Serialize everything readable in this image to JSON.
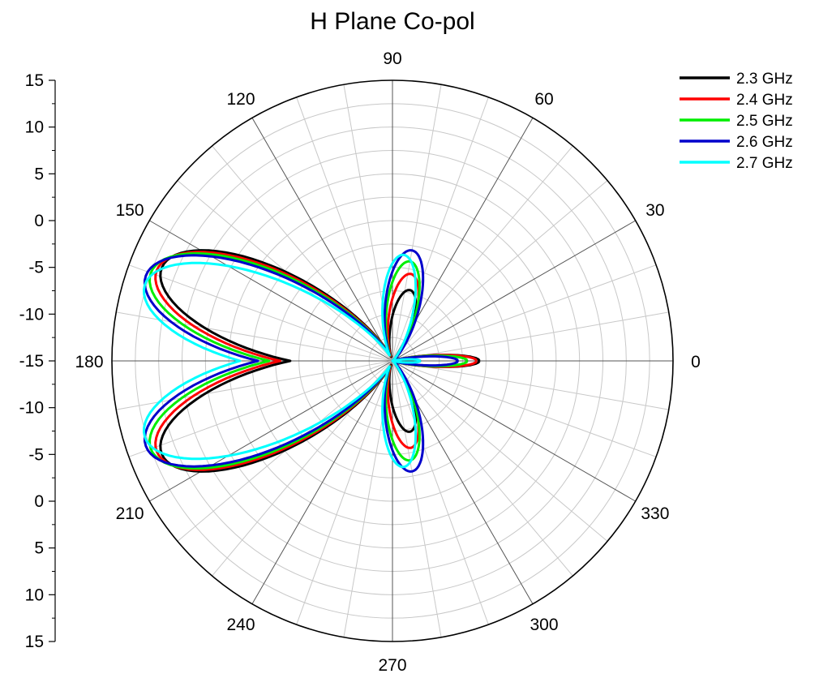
{
  "chart_data": {
    "type": "polar",
    "title": "H Plane Co-pol",
    "angle_ticks": [
      "0",
      "30",
      "60",
      "90",
      "120",
      "150",
      "180",
      "210",
      "240",
      "270",
      "300",
      "330"
    ],
    "radial_axis": {
      "range": [
        -15,
        15
      ],
      "ticks_upper": [
        "15",
        "10",
        "5",
        "0",
        "-5",
        "-10",
        "-15"
      ],
      "ticks_lower": [
        "-10",
        "-5",
        "0",
        "5",
        "10",
        "15"
      ]
    },
    "grid": true,
    "legend_position": "top-right",
    "series": [
      {
        "name": "2.3 GHz",
        "color": "#000000",
        "lobes": [
          {
            "center": 0,
            "peak": -5.7,
            "width": 12
          },
          {
            "center": 76,
            "peak": -7.2,
            "width": 26
          },
          {
            "center": 158,
            "peak": 11.6,
            "width": 30
          },
          {
            "center": 202,
            "peak": 11.6,
            "width": 30
          },
          {
            "center": 284,
            "peak": -7.2,
            "width": 26
          }
        ]
      },
      {
        "name": "2.4 GHz",
        "color": "#ff0000",
        "lobes": [
          {
            "center": 0,
            "peak": -6.0,
            "width": 12
          },
          {
            "center": 78,
            "peak": -5.5,
            "width": 26
          },
          {
            "center": 159,
            "peak": 12.0,
            "width": 30
          },
          {
            "center": 201,
            "peak": 12.0,
            "width": 30
          },
          {
            "center": 282,
            "peak": -5.5,
            "width": 26
          }
        ]
      },
      {
        "name": "2.5 GHz",
        "color": "#00ee00",
        "lobes": [
          {
            "center": 0,
            "peak": -7.0,
            "width": 12
          },
          {
            "center": 80,
            "peak": -4.2,
            "width": 26
          },
          {
            "center": 160,
            "peak": 12.5,
            "width": 30
          },
          {
            "center": 200,
            "peak": 12.5,
            "width": 30
          },
          {
            "center": 280,
            "peak": -4.2,
            "width": 26
          }
        ]
      },
      {
        "name": "2.6 GHz",
        "color": "#0000cc",
        "lobes": [
          {
            "center": 0,
            "peak": -8.0,
            "width": 12
          },
          {
            "center": 80,
            "peak": -3.0,
            "width": 27
          },
          {
            "center": 161,
            "peak": 12.9,
            "width": 30
          },
          {
            "center": 199,
            "peak": 12.9,
            "width": 30
          },
          {
            "center": 280,
            "peak": -3.0,
            "width": 27
          }
        ]
      },
      {
        "name": "2.7 GHz",
        "color": "#00ffff",
        "lobes": [
          {
            "center": 0,
            "peak": -12.0,
            "width": 10
          },
          {
            "center": 84,
            "peak": -3.6,
            "width": 26
          },
          {
            "center": 163,
            "peak": 12.7,
            "width": 30
          },
          {
            "center": 197,
            "peak": 12.7,
            "width": 30
          },
          {
            "center": 276,
            "peak": -3.6,
            "width": 26
          }
        ]
      }
    ]
  }
}
